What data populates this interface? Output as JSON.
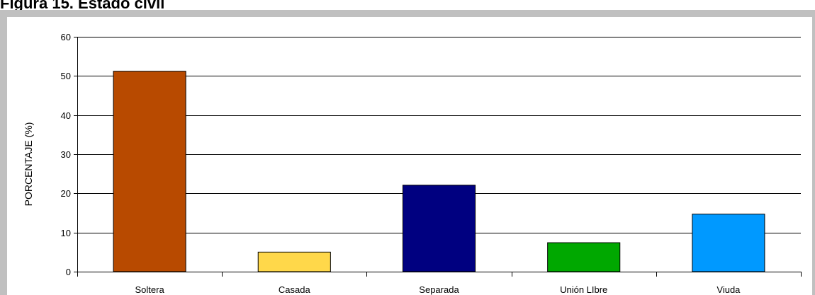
{
  "figure": {
    "title": "Figura 15. Estado civil"
  },
  "chart_data": {
    "type": "bar",
    "categories": [
      "Soltera",
      "Casada",
      "Separada",
      "Unión LIbre",
      "Viuda"
    ],
    "values": [
      51.2,
      5.0,
      22.1,
      7.4,
      14.7
    ],
    "colors": [
      "#b84a00",
      "#ffd84a",
      "#000080",
      "#00a800",
      "#0099ff"
    ],
    "title": "Figura 15. Estado civil",
    "xlabel": "",
    "ylabel": "PORCENTAJE (%)",
    "ylim": [
      0,
      60
    ],
    "yticks": [
      "0",
      "10",
      "20",
      "30",
      "40",
      "50",
      "60"
    ],
    "grid": true,
    "legend": "none"
  }
}
